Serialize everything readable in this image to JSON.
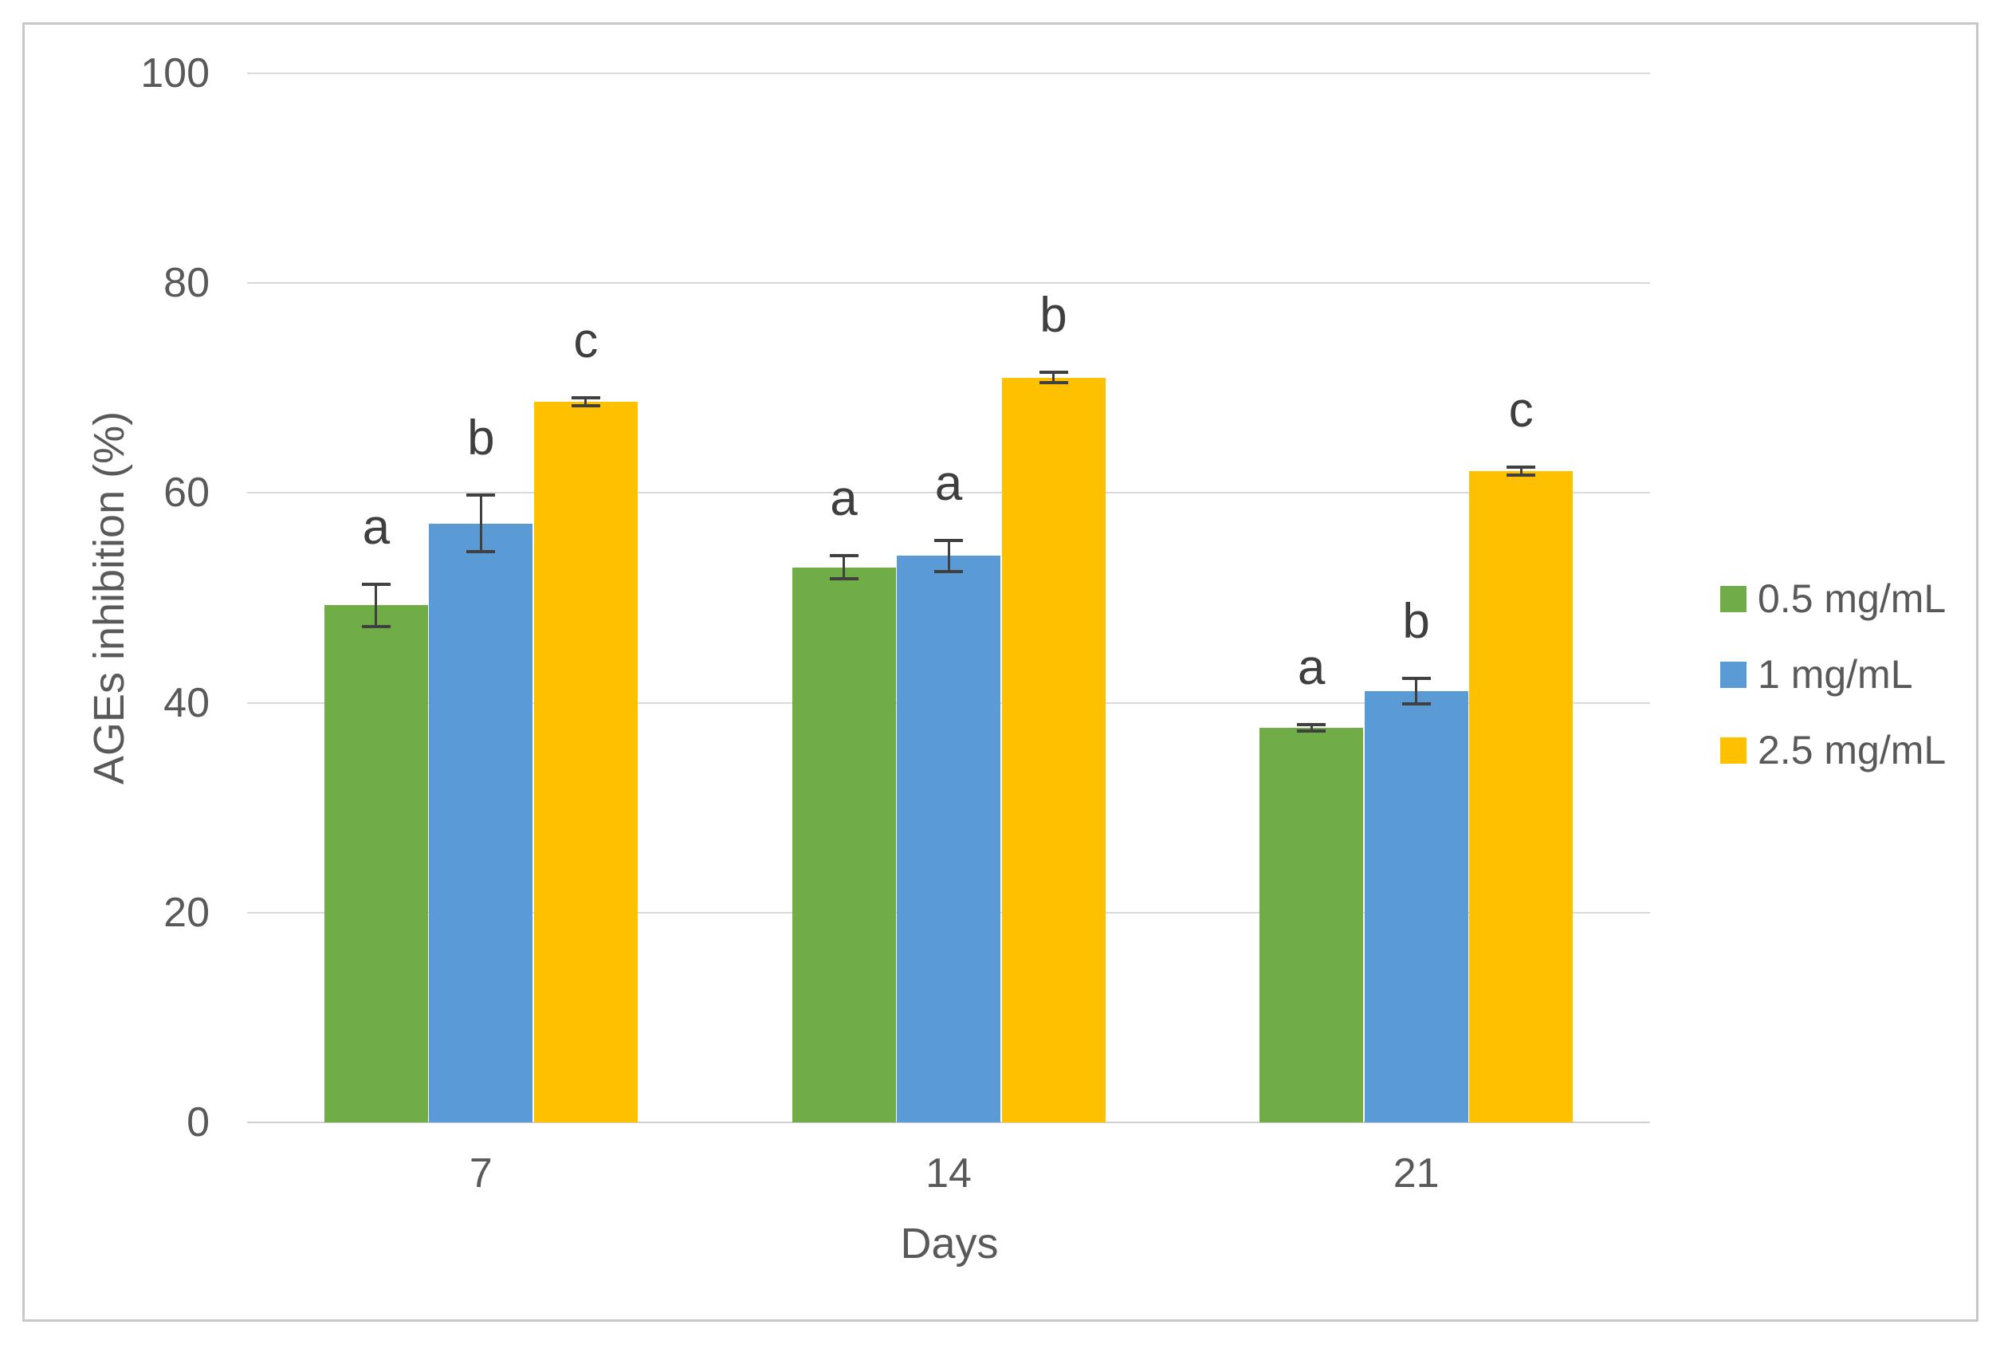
{
  "figure": {
    "frame_border_color": "#c8c8c8",
    "background_color": "#ffffff"
  },
  "chart_data": {
    "type": "bar",
    "title": "",
    "xlabel": "Days",
    "ylabel": "AGEs inhibition (%)",
    "categories": [
      "7",
      "14",
      "21"
    ],
    "series": [
      {
        "name": "0.5 mg/mL",
        "color": "#70AD47",
        "values": [
          49.3,
          52.9,
          37.6
        ],
        "errors": [
          2.0,
          1.1,
          0.3
        ],
        "letters": [
          "a",
          "a",
          "a"
        ]
      },
      {
        "name": "1 mg/mL",
        "color": "#5B9BD5",
        "values": [
          57.1,
          54.0,
          41.1
        ],
        "errors": [
          2.7,
          1.5,
          1.2
        ],
        "letters": [
          "b",
          "a",
          "b"
        ]
      },
      {
        "name": "2.5 mg/mL",
        "color": "#FFC000",
        "values": [
          68.7,
          71.0,
          62.1
        ],
        "errors": [
          0.4,
          0.5,
          0.4
        ],
        "letters": [
          "c",
          "b",
          "c"
        ]
      }
    ],
    "ylim": [
      0,
      100
    ],
    "yticks": [
      0,
      20,
      40,
      60,
      80,
      100
    ],
    "grid": true,
    "legend_position": "right",
    "gridline_color": "#d9d9d9",
    "error_bar_color": "#404040",
    "axis_text_color": "#595959",
    "letter_text_color": "#3f3f3f"
  }
}
